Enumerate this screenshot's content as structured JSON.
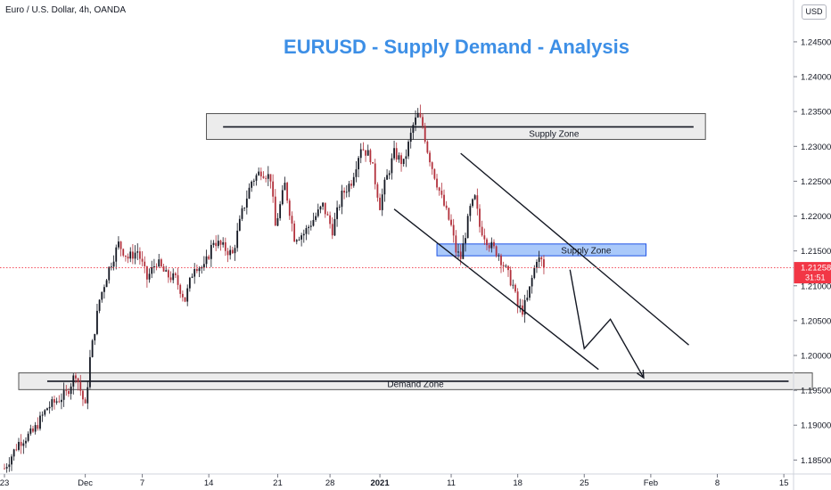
{
  "header": {
    "symbol_info": "Euro / U.S. Dollar, 4h, OANDA",
    "currency_button": "USD"
  },
  "chart_data": {
    "type": "candlestick",
    "title": "EURUSD - Supply Demand - Analysis",
    "y_axis": {
      "ylim": [
        1.183,
        1.251
      ],
      "ticks": [
        "1.24500",
        "1.24000",
        "1.23500",
        "1.23000",
        "1.22500",
        "1.22000",
        "1.21500",
        "1.21000",
        "1.20500",
        "1.20000",
        "1.19500",
        "1.19000",
        "1.18500"
      ],
      "tick_values": [
        1.245,
        1.24,
        1.235,
        1.23,
        1.225,
        1.22,
        1.215,
        1.21,
        1.205,
        1.2,
        1.195,
        1.19,
        1.185
      ]
    },
    "x_axis": {
      "ticks": [
        {
          "label": "23",
          "index": 0
        },
        {
          "label": "Dec",
          "index": 34
        },
        {
          "label": "7",
          "index": 58
        },
        {
          "label": "14",
          "index": 86
        },
        {
          "label": "21",
          "index": 115
        },
        {
          "label": "28",
          "index": 137
        },
        {
          "label": "2021",
          "index": 158
        },
        {
          "label": "11",
          "index": 188
        },
        {
          "label": "18",
          "index": 216
        },
        {
          "label": "25",
          "index": 244
        },
        {
          "label": "Feb",
          "index": 272
        },
        {
          "label": "8",
          "index": 300
        },
        {
          "label": "15",
          "index": 328
        }
      ]
    },
    "price": {
      "value": "1.21258",
      "numeric": 1.21258,
      "countdown": "31:51",
      "color": "#f23645"
    },
    "up_color": "#131722",
    "down_color": "#b2313c",
    "price_path": [
      [
        0,
        1.1838
      ],
      [
        6,
        1.1875
      ],
      [
        12,
        1.189
      ],
      [
        18,
        1.1925
      ],
      [
        26,
        1.1945
      ],
      [
        30,
        1.1975
      ],
      [
        34,
        1.1925
      ],
      [
        36,
        1.1995
      ],
      [
        40,
        1.208
      ],
      [
        44,
        1.2125
      ],
      [
        48,
        1.216
      ],
      [
        52,
        1.214
      ],
      [
        56,
        1.215
      ],
      [
        60,
        1.211
      ],
      [
        64,
        1.2135
      ],
      [
        68,
        1.2115
      ],
      [
        72,
        1.211
      ],
      [
        76,
        1.208
      ],
      [
        80,
        1.213
      ],
      [
        84,
        1.2125
      ],
      [
        88,
        1.2165
      ],
      [
        92,
        1.2155
      ],
      [
        96,
        1.2145
      ],
      [
        100,
        1.2205
      ],
      [
        104,
        1.225
      ],
      [
        108,
        1.2265
      ],
      [
        112,
        1.2255
      ],
      [
        114,
        1.2185
      ],
      [
        118,
        1.2245
      ],
      [
        122,
        1.217
      ],
      [
        126,
        1.2175
      ],
      [
        130,
        1.2195
      ],
      [
        134,
        1.2215
      ],
      [
        138,
        1.218
      ],
      [
        142,
        1.223
      ],
      [
        146,
        1.225
      ],
      [
        150,
        1.23
      ],
      [
        154,
        1.2285
      ],
      [
        158,
        1.2215
      ],
      [
        160,
        1.2245
      ],
      [
        164,
        1.229
      ],
      [
        168,
        1.2275
      ],
      [
        172,
        1.233
      ],
      [
        174,
        1.2345
      ],
      [
        176,
        1.233
      ],
      [
        178,
        1.2295
      ],
      [
        180,
        1.227
      ],
      [
        184,
        1.2225
      ],
      [
        188,
        1.2185
      ],
      [
        190,
        1.215
      ],
      [
        192,
        1.214
      ],
      [
        196,
        1.221
      ],
      [
        198,
        1.2225
      ],
      [
        200,
        1.2185
      ],
      [
        204,
        1.216
      ],
      [
        208,
        1.2145
      ],
      [
        212,
        1.2115
      ],
      [
        214,
        1.21
      ],
      [
        216,
        1.207
      ],
      [
        218,
        1.2065
      ],
      [
        220,
        1.208
      ],
      [
        222,
        1.211
      ],
      [
        224,
        1.214
      ],
      [
        226,
        1.2135
      ],
      [
        227,
        1.2126
      ]
    ],
    "annotations": {
      "upper_supply_zone": {
        "label": "Supply Zone",
        "from_index": 85,
        "to_index": 295,
        "top": 1.2347,
        "bottom": 1.231,
        "line_price": 1.2328,
        "line_from": 92,
        "line_to": 290
      },
      "mid_supply_zone": {
        "label": "Supply Zone",
        "from_index": 182,
        "to_index": 270,
        "top": 1.216,
        "bottom": 1.2143
      },
      "demand_zone": {
        "label": "Demand Zone",
        "from_index": 6,
        "to_index": 340,
        "top": 1.1975,
        "bottom": 1.1951,
        "line_price": 1.1963,
        "line_from": 18,
        "line_to": 330
      },
      "channel_upper": {
        "from": [
          192,
          1.229
        ],
        "to": [
          288,
          1.2015
        ]
      },
      "channel_lower": {
        "from": [
          164,
          1.221
        ],
        "to": [
          250,
          1.198
        ]
      },
      "projection": [
        [
          238,
          1.2123
        ],
        [
          244,
          1.201
        ],
        [
          255,
          1.2052
        ],
        [
          269,
          1.1968
        ]
      ]
    }
  }
}
